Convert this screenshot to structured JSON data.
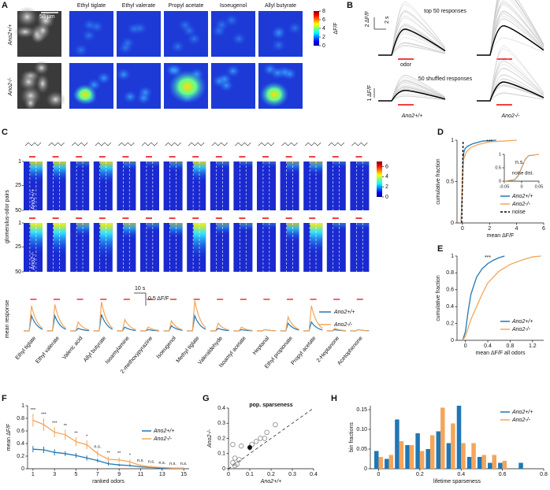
{
  "panel_labels": [
    "A",
    "B",
    "C",
    "D",
    "E",
    "F",
    "G",
    "H"
  ],
  "genotypes": [
    "Ano2+/+",
    "Ano2-/-"
  ],
  "panel_a": {
    "odors": [
      "Ethyl tiglate",
      "Ethyl valerate",
      "Propyl acetate",
      "Isoeugenol",
      "Allyl butyrate"
    ],
    "scale_bar": "50 µm",
    "colorbar_label": "ΔF/F",
    "colorbar_lim": [
      0,
      8
    ],
    "colorbar_ticks": [
      0,
      2,
      4,
      6,
      8
    ]
  },
  "panel_b": {
    "top_title": "top 50 responses",
    "shuffled_title": "50 shuffled responses",
    "scale_y_top": "2 ΔF/F",
    "scale_x": "2 s",
    "odor_label": "odor",
    "scale_y_bottom": "1 ΔF/F"
  },
  "panel_c": {
    "odors": [
      "Ethyl tiglate",
      "Ethyl valerate",
      "Valeric acid",
      "Allyl butyrate",
      "Isoamylamine",
      "2-methoxypyrazine",
      "Isoeugenol",
      "Methyl tiglate",
      "Valeraldehyde",
      "Isoamyl acetate",
      "Heptanal",
      "Ethyl propionate",
      "Propyl acetate",
      "2-Heptanone",
      "Acetophenone"
    ],
    "y_label": "glomerulus-odor pairs",
    "yticks": [
      1,
      25,
      50
    ],
    "colorbar_lim": [
      0,
      7
    ],
    "colorbar_ticks": [
      0,
      2,
      4,
      6
    ],
    "scale_x": "10 s",
    "scale_y": "0.5 ΔF/F",
    "mean_label": "mean response",
    "mean_peaks": [
      {
        "name": "Ano2+/+",
        "color": "#1f77b4",
        "values": [
          0.6,
          0.6,
          0.1,
          0.65,
          0.15,
          0.05,
          0.2,
          0.6,
          0.1,
          0.05,
          0.05,
          0.3,
          0.35,
          0.05,
          0.05
        ]
      },
      {
        "name": "Ano2-/-",
        "color": "#f5a55a",
        "values": [
          1.0,
          1.05,
          0.35,
          1.15,
          0.45,
          0.15,
          0.4,
          1.2,
          0.3,
          0.15,
          0.05,
          0.55,
          1.0,
          0.1,
          0.05
        ]
      }
    ]
  },
  "chart_data": [
    {
      "type": "line",
      "x_label": "mean ΔF/F",
      "y_label": "cumulative fraction",
      "annotation": "***",
      "legend": "lower right",
      "xlim": [
        -0.4,
        6
      ],
      "xticks": [
        0,
        2,
        4,
        6
      ],
      "ylim": [
        0,
        1
      ],
      "yticks": [
        0,
        0.5,
        1
      ],
      "series": [
        {
          "name": "Ano2+/+",
          "color": "#1f77b4",
          "x": [
            -0.1,
            0,
            0.05,
            0.1,
            0.2,
            0.4,
            0.8,
            1.5,
            2.5
          ],
          "values": [
            0,
            0.5,
            0.75,
            0.85,
            0.9,
            0.93,
            0.96,
            0.99,
            1
          ]
        },
        {
          "name": "Ano2-/-",
          "color": "#f5a55a",
          "x": [
            -0.1,
            0,
            0.05,
            0.1,
            0.3,
            0.6,
            1.2,
            2,
            3,
            4
          ],
          "values": [
            0,
            0.45,
            0.65,
            0.78,
            0.86,
            0.91,
            0.95,
            0.98,
            0.99,
            1
          ]
        },
        {
          "name": "noise",
          "color": "#000000",
          "dash": true,
          "x": [
            -0.05,
            0,
            0.05
          ],
          "values": [
            0,
            0.5,
            1
          ]
        }
      ],
      "inset": {
        "annotation": "n.s.",
        "label": "noise dist.",
        "xlim": [
          -0.05,
          0.05
        ],
        "xticks": [
          -0.05,
          0,
          0.05
        ],
        "ylim": [
          0,
          1
        ],
        "yticks": [
          0,
          0.5,
          1
        ],
        "series": [
          {
            "color": "#1f77b4",
            "x": [
              -0.05,
              -0.02,
              -0.01,
              0,
              0.01,
              0.02,
              0.05
            ],
            "values": [
              0,
              0.05,
              0.2,
              0.5,
              0.8,
              0.95,
              1
            ]
          },
          {
            "color": "#f5a55a",
            "x": [
              -0.05,
              -0.02,
              -0.01,
              0,
              0.01,
              0.02,
              0.05
            ],
            "values": [
              0,
              0.06,
              0.22,
              0.52,
              0.82,
              0.96,
              1
            ]
          }
        ]
      }
    },
    {
      "type": "line",
      "x_label": "mean ΔF/F all odors",
      "y_label": "cumulative fraction",
      "annotation": "***",
      "legend": "lower right",
      "xlim": [
        -0.15,
        1.4
      ],
      "xticks": [
        0,
        0.4,
        0.8,
        1.2
      ],
      "ylim": [
        0,
        1
      ],
      "yticks": [
        0,
        0.2,
        0.4,
        0.6,
        0.8,
        1
      ],
      "series": [
        {
          "name": "Ano2+/+",
          "color": "#1f77b4",
          "x": [
            -0.05,
            0,
            0.05,
            0.1,
            0.2,
            0.3,
            0.4,
            0.5,
            0.6,
            0.7
          ],
          "values": [
            0,
            0.1,
            0.35,
            0.55,
            0.75,
            0.85,
            0.91,
            0.95,
            0.98,
            1
          ]
        },
        {
          "name": "Ano2-/-",
          "color": "#f5a55a",
          "x": [
            -0.05,
            0,
            0.1,
            0.2,
            0.3,
            0.4,
            0.5,
            0.6,
            0.8,
            1,
            1.2,
            1.35
          ],
          "values": [
            0,
            0.05,
            0.25,
            0.4,
            0.55,
            0.68,
            0.75,
            0.82,
            0.9,
            0.95,
            0.99,
            1
          ]
        }
      ]
    },
    {
      "type": "errorline",
      "x_label": "ranked odors",
      "y_label": "mean ΔF/F",
      "legend": "right",
      "x": [
        1,
        2,
        3,
        4,
        5,
        6,
        7,
        8,
        9,
        10,
        11,
        12,
        13,
        14,
        15
      ],
      "xlim": [
        0.5,
        15.5
      ],
      "xticks": [
        1,
        3,
        5,
        7,
        9,
        11,
        13,
        15
      ],
      "ylim": [
        0,
        1
      ],
      "yticks": [
        0,
        0.2,
        0.4,
        0.6,
        0.8,
        1
      ],
      "series": [
        {
          "name": "Ano2+/+",
          "color": "#1f77b4",
          "values": [
            0.31,
            0.3,
            0.26,
            0.24,
            0.21,
            0.17,
            0.13,
            0.08,
            0.06,
            0.05,
            0.03,
            0.02,
            0.01,
            0.01,
            0
          ],
          "errors": [
            0.05,
            0.05,
            0.05,
            0.04,
            0.04,
            0.04,
            0.03,
            0.03,
            0.02,
            0.02,
            0.01,
            0.01,
            0.01,
            0.01,
            0.01
          ]
        },
        {
          "name": "Ano2-/-",
          "color": "#f5a55a",
          "values": [
            0.77,
            0.7,
            0.58,
            0.54,
            0.43,
            0.38,
            0.24,
            0.15,
            0.14,
            0.11,
            0.05,
            0.03,
            0.02,
            0.01,
            0.01
          ],
          "errors": [
            0.1,
            0.1,
            0.08,
            0.08,
            0.07,
            0.07,
            0.05,
            0.04,
            0.04,
            0.04,
            0.02,
            0.02,
            0.01,
            0.01,
            0.01
          ]
        }
      ],
      "significance": [
        "***",
        "***",
        "***",
        "**",
        "**",
        "*",
        "n.s.",
        "**",
        "**",
        "*",
        "n.s.",
        "n.s.",
        "n.s.",
        "n.s.",
        "n.s."
      ]
    },
    {
      "type": "scatter",
      "title": "pop. sparseness",
      "x_label": "Ano2+/+",
      "y_label": "Ano2-/-",
      "xlim": [
        0,
        0.4
      ],
      "xticks": [
        0,
        0.1,
        0.2,
        0.3,
        0.4
      ],
      "ylim": [
        0,
        0.4
      ],
      "yticks": [
        0,
        0.1,
        0.2,
        0.3,
        0.4
      ],
      "x": [
        0.02,
        0.03,
        0.04,
        0.03,
        0.05,
        0.02,
        0.06,
        0.11,
        0.13,
        0.15,
        0.17,
        0.18,
        0.22
      ],
      "values": [
        0.04,
        0.02,
        0.03,
        0.07,
        0.06,
        0.16,
        0.15,
        0.16,
        0.18,
        0.2,
        0.2,
        0.24,
        0.29
      ],
      "mean_x": 0.1,
      "mean_y": 0.14,
      "mean_error": 0.02
    },
    {
      "type": "groupedbar",
      "x_label": "lifetime sparseness",
      "y_label": "bin fractions",
      "legend": "upper right",
      "x": [
        0,
        0.05,
        0.1,
        0.15,
        0.2,
        0.25,
        0.3,
        0.35,
        0.4,
        0.45,
        0.5,
        0.55,
        0.6,
        0.65,
        0.7
      ],
      "xlim": [
        -0.04,
        0.8
      ],
      "xticks": [
        0,
        0.2,
        0.4,
        0.6,
        0.8
      ],
      "ylim": [
        0,
        0.16
      ],
      "yticks": [
        0,
        0.05,
        {
          "value": 0.1,
          "label": "0.10"
        },
        0.15
      ],
      "series": [
        {
          "name": "Ano2+/+",
          "color": "#1f77b4",
          "values": [
            0.045,
            0.025,
            0.125,
            0.06,
            0.09,
            0.05,
            0.095,
            0.065,
            0.16,
            0.03,
            0.03,
            0.015,
            0.015,
            0,
            0.015
          ]
        },
        {
          "name": "Ano2-/-",
          "color": "#f5a55a",
          "values": [
            0.03,
            0.035,
            0.07,
            0.06,
            0.045,
            0.085,
            0.155,
            0.115,
            0.065,
            0.065,
            0.035,
            0.035,
            0.02,
            0,
            0
          ]
        }
      ]
    }
  ]
}
